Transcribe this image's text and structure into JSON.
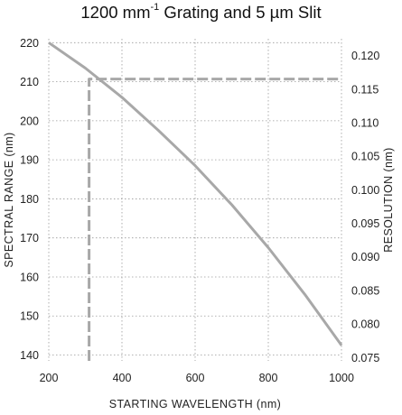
{
  "chart_data": {
    "type": "line",
    "title": {
      "prefix": "1200 mm",
      "superscript": "-1",
      "suffix": " Grating and 5 µm Slit"
    },
    "xlabel": "STARTING WAVELENGTH (nm)",
    "ylabel": "SPECTRAL RANGE (nm)",
    "y2label": "RESOLUTION (nm)",
    "xlim": [
      200,
      1000
    ],
    "ylim": [
      138.5,
      221
    ],
    "y2lim": [
      0.0745,
      0.1225
    ],
    "x_ticks": [
      "200",
      "400",
      "600",
      "800",
      "1000"
    ],
    "x_tick_values": [
      200,
      400,
      600,
      800,
      1000
    ],
    "y_ticks": [
      "220",
      "210",
      "200",
      "190",
      "180",
      "170",
      "160",
      "150",
      "140"
    ],
    "y_tick_values": [
      220,
      210,
      200,
      190,
      180,
      170,
      160,
      150,
      140
    ],
    "y2_ticks": [
      "0.120",
      "0.115",
      "0.110",
      "0.105",
      "0.100",
      "0.095",
      "0.090",
      "0.085",
      "0.080",
      "0.075"
    ],
    "y2_tick_values": [
      0.12,
      0.115,
      0.11,
      0.105,
      0.1,
      0.095,
      0.09,
      0.085,
      0.08,
      0.075
    ],
    "grid": true,
    "series": [
      {
        "axis": "left",
        "style": "solid",
        "color": "#a8a8a8",
        "x": [
          200,
          300,
          400,
          500,
          600,
          700,
          800,
          900,
          1000
        ],
        "y": [
          220,
          213.5,
          206,
          197.5,
          188.5,
          178.5,
          167.5,
          155.5,
          142.5
        ]
      },
      {
        "axis": "right",
        "style": "dashed",
        "color": "#a8a8a8",
        "x": [
          310,
          310,
          1000
        ],
        "y": [
          0.0745,
          0.1165,
          0.1165
        ]
      }
    ]
  }
}
